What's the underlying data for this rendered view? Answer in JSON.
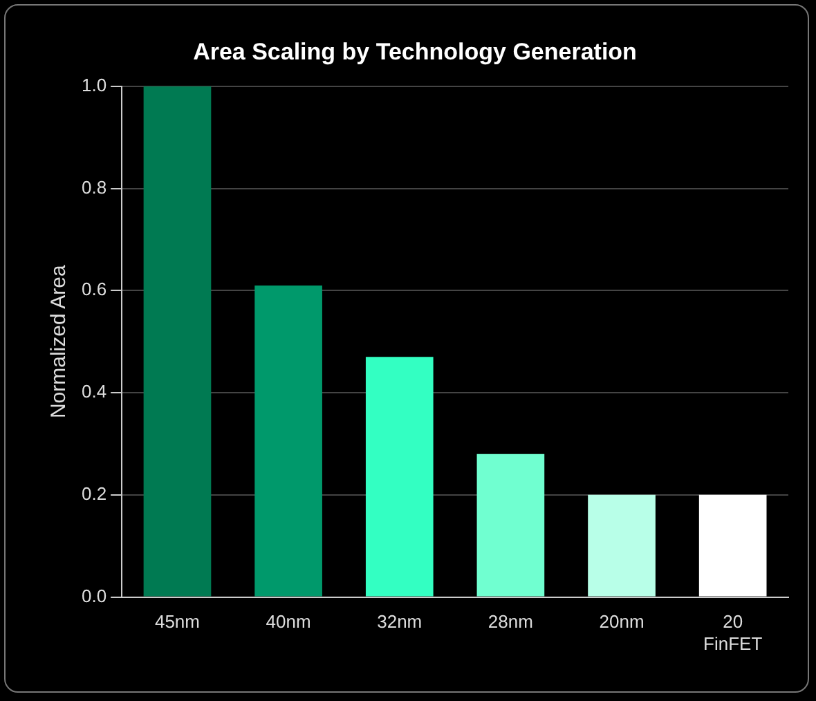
{
  "chart_data": {
    "type": "bar",
    "title": "Area Scaling by Technology Generation",
    "ylabel": "Normalized Area",
    "categories": [
      "45nm",
      "40nm",
      "32nm",
      "28nm",
      "20nm",
      "20 FinFET"
    ],
    "values": [
      1.0,
      0.61,
      0.47,
      0.28,
      0.2,
      0.2
    ],
    "colors": [
      "#007a52",
      "#00996b",
      "#33ffc2",
      "#70ffd0",
      "#b8ffe8",
      "#ffffff"
    ],
    "ylim": [
      0,
      1
    ],
    "yticks": [
      {
        "value": 0,
        "label": "0.0"
      },
      {
        "value": 0.2,
        "label": "0.2"
      },
      {
        "value": 0.4,
        "label": "0.4"
      },
      {
        "value": 0.6,
        "label": "0.6"
      },
      {
        "value": 0.8,
        "label": "0.8"
      },
      {
        "value": 1,
        "label": "1.0"
      }
    ],
    "grid": "y",
    "legend": false
  }
}
